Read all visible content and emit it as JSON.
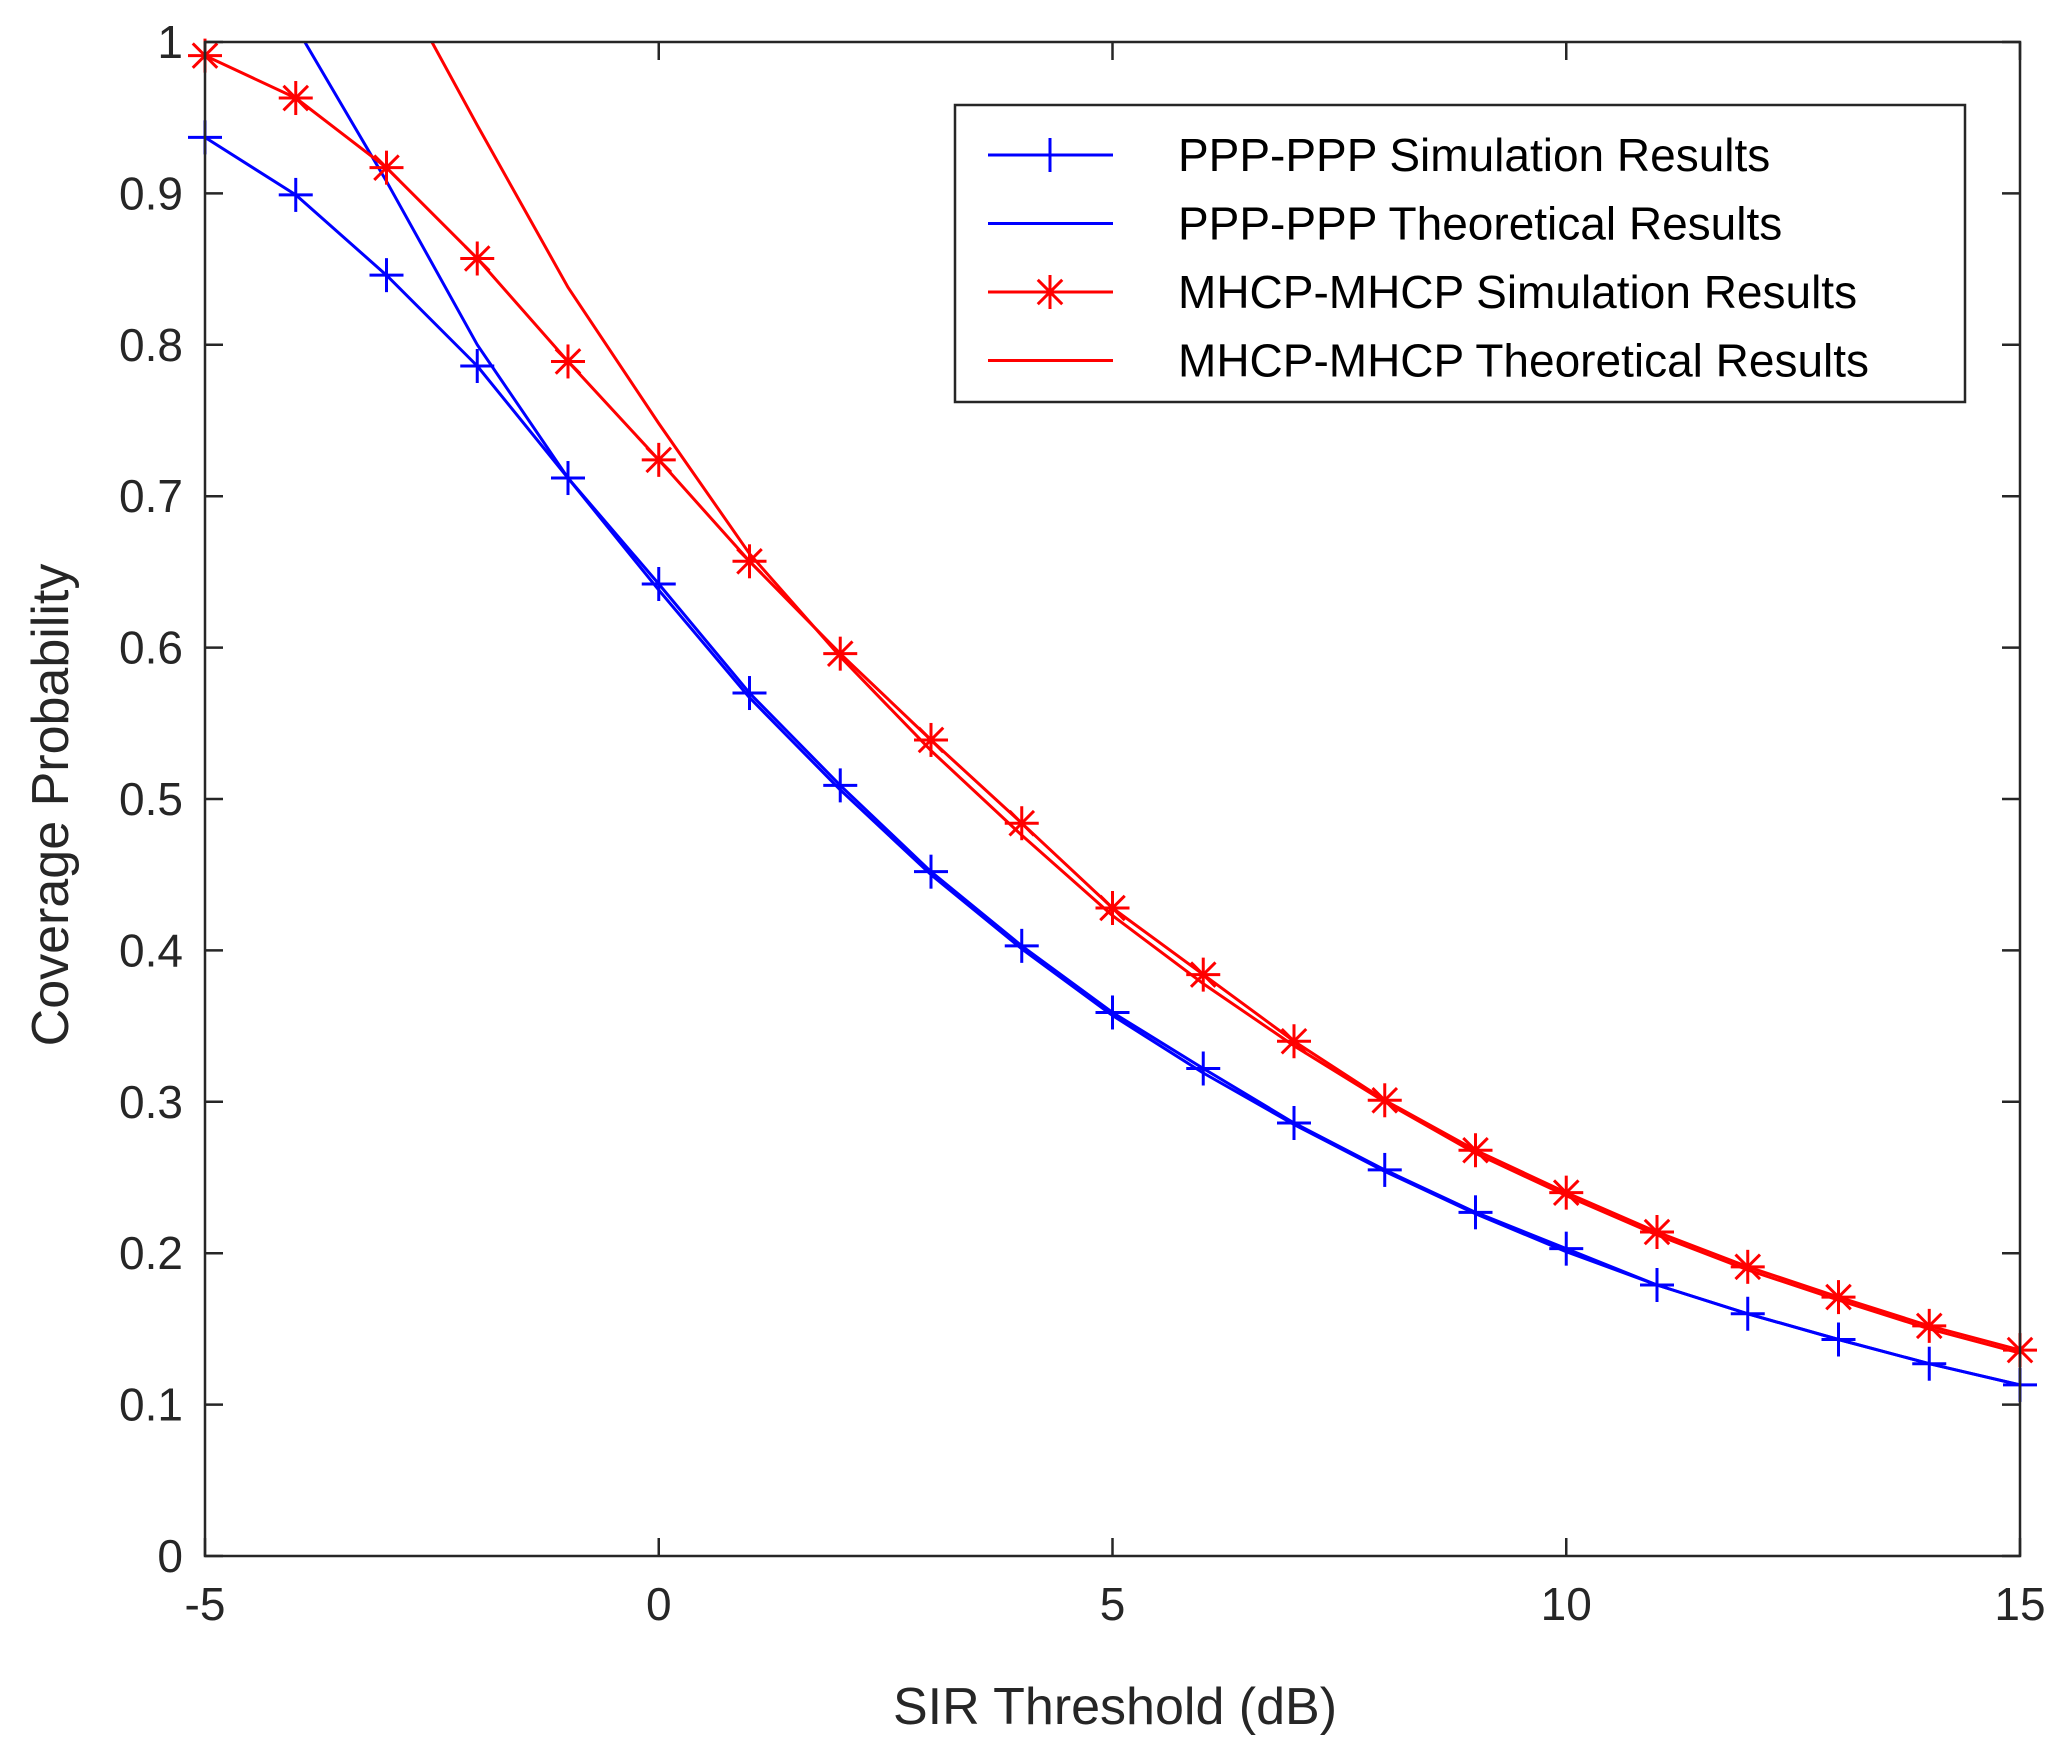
{
  "chart_data": {
    "type": "line",
    "title": "",
    "xlabel": "SIR Threshold (dB)",
    "ylabel": "Coverage Probability",
    "xlim": [
      -5,
      15
    ],
    "ylim": [
      0,
      1
    ],
    "xticks": [
      -5,
      0,
      5,
      10,
      15
    ],
    "xtick_labels": [
      "-5",
      "0",
      "5",
      "10",
      "15"
    ],
    "yticks": [
      0,
      0.1,
      0.2,
      0.3,
      0.4,
      0.5,
      0.6,
      0.7,
      0.8,
      0.9,
      1
    ],
    "ytick_labels": [
      "0",
      "0.1",
      "0.2",
      "0.3",
      "0.4",
      "0.5",
      "0.6",
      "0.7",
      "0.8",
      "0.9",
      "1"
    ],
    "grid": false,
    "legend_position": "top-right",
    "series": [
      {
        "name": "PPP-PPP Simulation Results",
        "color": "#0000ff",
        "marker": "plus",
        "x": [
          -5,
          -4,
          -3,
          -2,
          -1,
          0,
          1,
          2,
          3,
          4,
          5,
          6,
          7,
          8,
          9,
          10,
          11,
          12,
          13,
          14,
          15
        ],
        "y": [
          0.937,
          0.899,
          0.846,
          0.786,
          0.712,
          0.642,
          0.57,
          0.509,
          0.452,
          0.403,
          0.359,
          0.322,
          0.286,
          0.255,
          0.227,
          0.203,
          0.179,
          0.16,
          0.143,
          0.127,
          0.113
        ]
      },
      {
        "name": "PPP-PPP Theoretical Results",
        "color": "#0000ff",
        "marker": "none",
        "x": [
          -3.9,
          -3,
          -2,
          -1,
          0,
          1,
          2,
          3,
          4,
          5,
          6,
          7,
          8,
          9,
          10,
          11,
          12,
          13,
          14,
          15
        ],
        "y": [
          1.0,
          0.908,
          0.8,
          0.712,
          0.638,
          0.567,
          0.506,
          0.45,
          0.401,
          0.357,
          0.319,
          0.285,
          0.254,
          0.226,
          0.201,
          0.179,
          0.16,
          0.143,
          0.127,
          0.113
        ]
      },
      {
        "name": "MHCP-MHCP Simulation Results",
        "color": "#ff0000",
        "marker": "star",
        "x": [
          -5,
          -4,
          -3,
          -2,
          -1,
          0,
          1,
          2,
          3,
          4,
          5,
          6,
          7,
          8,
          9,
          10,
          11,
          12,
          13,
          14,
          15
        ],
        "y": [
          0.991,
          0.963,
          0.917,
          0.857,
          0.789,
          0.724,
          0.657,
          0.596,
          0.539,
          0.484,
          0.428,
          0.384,
          0.34,
          0.301,
          0.268,
          0.24,
          0.214,
          0.191,
          0.171,
          0.152,
          0.136
        ]
      },
      {
        "name": "MHCP-MHCP Theoretical Results",
        "color": "#ff0000",
        "marker": "none",
        "x": [
          -2.5,
          -2,
          -1,
          0,
          1,
          2,
          3,
          4,
          5,
          6,
          7,
          8,
          9,
          10,
          11,
          12,
          13,
          14,
          15
        ],
        "y": [
          1.0,
          0.945,
          0.838,
          0.748,
          0.662,
          0.594,
          0.532,
          0.476,
          0.423,
          0.378,
          0.337,
          0.3,
          0.266,
          0.238,
          0.212,
          0.189,
          0.169,
          0.15,
          0.134
        ]
      }
    ]
  }
}
